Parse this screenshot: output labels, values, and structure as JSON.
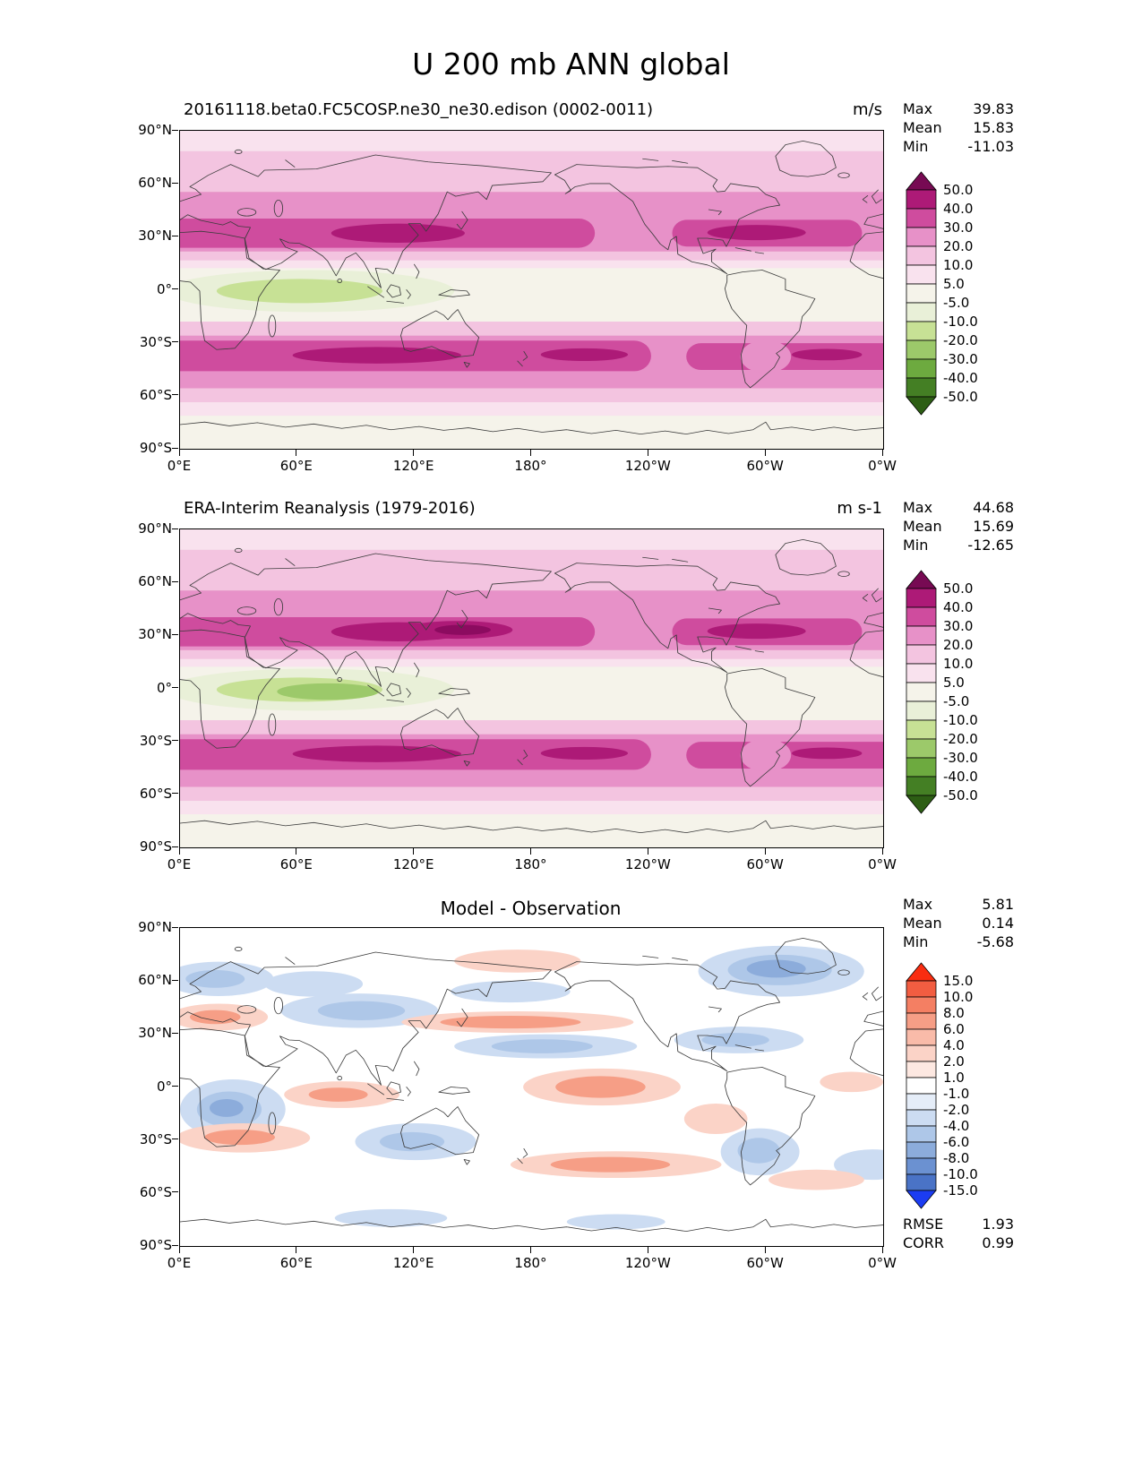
{
  "title": "U 200 mb ANN global",
  "panels": [
    {
      "subtitle": "20161118.beta0.FC5COSP.ne30_ne30.edison (0002-0011)",
      "units": "m/s",
      "stats": {
        "max_label": "Max",
        "max_value": "39.83",
        "mean_label": "Mean",
        "mean_value": "15.83",
        "min_label": "Min",
        "min_value": "-11.03"
      }
    },
    {
      "subtitle": "ERA-Interim Reanalysis (1979-2016)",
      "units": "m s-1",
      "stats": {
        "max_label": "Max",
        "max_value": "44.68",
        "mean_label": "Mean",
        "mean_value": "15.69",
        "min_label": "Min",
        "min_value": "-12.65"
      }
    },
    {
      "subtitle": "Model - Observation",
      "units": "",
      "stats": {
        "max_label": "Max",
        "max_value": "5.81",
        "mean_label": "Mean",
        "mean_value": "0.14",
        "min_label": "Min",
        "min_value": "-5.68"
      },
      "metrics": {
        "rmse_label": "RMSE",
        "rmse_value": "1.93",
        "corr_label": "CORR",
        "corr_value": "0.99"
      }
    }
  ],
  "axes": {
    "lat_labels": [
      "90°N",
      "60°N",
      "30°N",
      "0°",
      "30°S",
      "60°S",
      "90°S"
    ],
    "lon_labels": [
      "0°E",
      "60°E",
      "120°E",
      "180°",
      "120°W",
      "60°W",
      "0°W"
    ]
  },
  "colorbars": [
    {
      "labels": [
        "50.0",
        "40.0",
        "30.0",
        "20.0",
        "10.0",
        "5.0",
        "-5.0",
        "-10.0",
        "-20.0",
        "-30.0",
        "-40.0",
        "-50.0"
      ],
      "cap_top": "#770a53",
      "band_colors": [
        "#ad1a77",
        "#cf4c9e",
        "#e791c8",
        "#f3c4e0",
        "#f9e2ee",
        "#f5f3ea",
        "#e9f0d8",
        "#c7e195",
        "#9cc96a",
        "#6daa3f",
        "#447f24"
      ],
      "cap_bottom": "#2d5e14"
    },
    {
      "labels": [
        "50.0",
        "40.0",
        "30.0",
        "20.0",
        "10.0",
        "5.0",
        "-5.0",
        "-10.0",
        "-20.0",
        "-30.0",
        "-40.0",
        "-50.0"
      ],
      "cap_top": "#770a53",
      "band_colors": [
        "#ad1a77",
        "#cf4c9e",
        "#e791c8",
        "#f3c4e0",
        "#f9e2ee",
        "#f5f3ea",
        "#e9f0d8",
        "#c7e195",
        "#9cc96a",
        "#6daa3f",
        "#447f24"
      ],
      "cap_bottom": "#2d5e14"
    },
    {
      "labels": [
        "15.0",
        "10.0",
        "8.0",
        "6.0",
        "4.0",
        "2.0",
        "1.0",
        "-1.0",
        "-2.0",
        "-4.0",
        "-6.0",
        "-8.0",
        "-10.0",
        "-15.0"
      ],
      "cap_top": "#f92d11",
      "band_colors": [
        "#f25d41",
        "#f47f63",
        "#f69e86",
        "#f9bba9",
        "#fbd3c7",
        "#fde8e1",
        "#ffffff",
        "#e5edf8",
        "#ccdcf2",
        "#aec7e8",
        "#8cacdb",
        "#6b91d1",
        "#4a73c6"
      ],
      "cap_bottom": "#1b3cf2"
    }
  ],
  "chart_data": [
    {
      "type": "heatmap",
      "variant": "filled_contour_world_map",
      "title": "20161118.beta0.FC5COSP.ne30_ne30.edison (0002-0011)",
      "units": "m/s",
      "x_axis": {
        "label": "longitude",
        "ticks": [
          "0°E",
          "60°E",
          "120°E",
          "180°",
          "120°W",
          "60°W",
          "0°W"
        ]
      },
      "y_axis": {
        "label": "latitude",
        "ticks": [
          "90°N",
          "60°N",
          "30°N",
          "0°",
          "30°S",
          "60°S",
          "90°S"
        ]
      },
      "contour_levels": [
        -50,
        -40,
        -30,
        -20,
        -10,
        -5,
        5,
        10,
        20,
        30,
        40,
        50
      ],
      "stats": {
        "max": 39.83,
        "mean": 15.83,
        "min": -11.03
      },
      "colormap": "green-white-magenta diverging"
    },
    {
      "type": "heatmap",
      "variant": "filled_contour_world_map",
      "title": "ERA-Interim Reanalysis (1979-2016)",
      "units": "m s-1",
      "x_axis": {
        "label": "longitude",
        "ticks": [
          "0°E",
          "60°E",
          "120°E",
          "180°",
          "120°W",
          "60°W",
          "0°W"
        ]
      },
      "y_axis": {
        "label": "latitude",
        "ticks": [
          "90°N",
          "60°N",
          "30°N",
          "0°",
          "30°S",
          "60°S",
          "90°S"
        ]
      },
      "contour_levels": [
        -50,
        -40,
        -30,
        -20,
        -10,
        -5,
        5,
        10,
        20,
        30,
        40,
        50
      ],
      "stats": {
        "max": 44.68,
        "mean": 15.69,
        "min": -12.65
      },
      "colormap": "green-white-magenta diverging"
    },
    {
      "type": "heatmap",
      "variant": "filled_contour_world_map",
      "title": "Model - Observation",
      "x_axis": {
        "label": "longitude",
        "ticks": [
          "0°E",
          "60°E",
          "120°E",
          "180°",
          "120°W",
          "60°W",
          "0°W"
        ]
      },
      "y_axis": {
        "label": "latitude",
        "ticks": [
          "90°N",
          "60°N",
          "30°N",
          "0°",
          "30°S",
          "60°S",
          "90°S"
        ]
      },
      "contour_levels": [
        -15,
        -10,
        -8,
        -6,
        -4,
        -2,
        -1,
        1,
        2,
        4,
        6,
        8,
        10,
        15
      ],
      "stats": {
        "max": 5.81,
        "mean": 0.14,
        "min": -5.68,
        "rmse": 1.93,
        "corr": 0.99
      },
      "colormap": "blue-white-red diverging"
    }
  ]
}
